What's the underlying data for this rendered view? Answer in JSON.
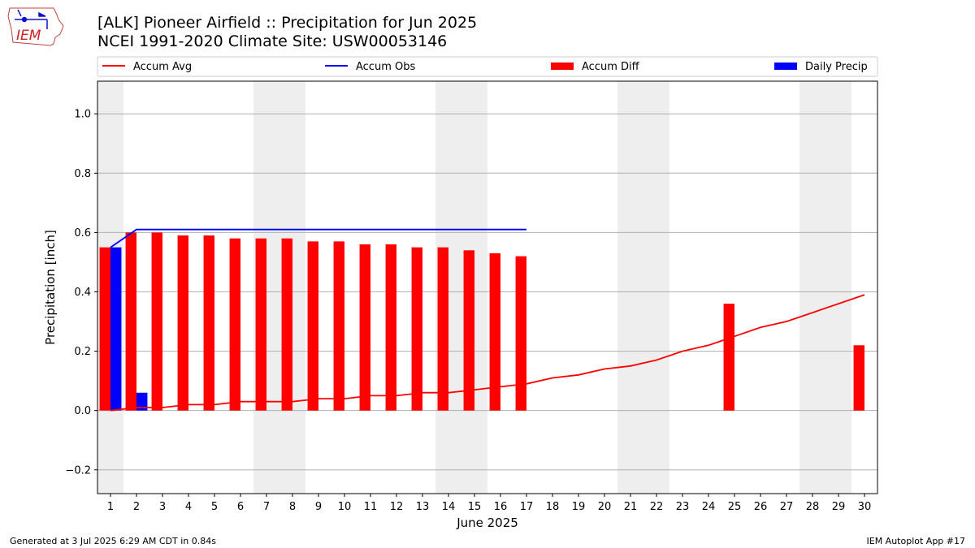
{
  "header": {
    "title_line1": "[ALK] Pioneer Airfield :: Precipitation for Jun 2025",
    "title_line2": "NCEI 1991-2020 Climate Site: USW00053146"
  },
  "logo": {
    "text": "IEM",
    "icon": "iem-iowa-logo"
  },
  "footer": {
    "left": "Generated at 3 Jul 2025 6:29 AM CDT in 0.84s",
    "right": "IEM Autoplot App #17"
  },
  "colors": {
    "red": "#ff0000",
    "blue": "#0000ff",
    "weekend_shade": "#eeeeee",
    "grid": "#b0b0b0"
  },
  "chart_data": {
    "type": "bar",
    "xlabel": "June 2025",
    "ylabel": "Precipitation [inch]",
    "ylim": [
      -0.28,
      1.11
    ],
    "yticks": [
      -0.2,
      0.0,
      0.2,
      0.4,
      0.6,
      0.8,
      1.0
    ],
    "ytick_labels": [
      "−0.2",
      "0.0",
      "0.2",
      "0.4",
      "0.6",
      "0.8",
      "1.0"
    ],
    "grid": "horizontal",
    "legend_position": "top",
    "days": [
      1,
      2,
      3,
      4,
      5,
      6,
      7,
      8,
      9,
      10,
      11,
      12,
      13,
      14,
      15,
      16,
      17,
      18,
      19,
      20,
      21,
      22,
      23,
      24,
      25,
      26,
      27,
      28,
      29,
      30
    ],
    "weekend_shaded_days": [
      1,
      7,
      8,
      14,
      15,
      21,
      22,
      28,
      29
    ],
    "legend": [
      {
        "label": "Accum Avg",
        "kind": "line",
        "color": "#ff0000"
      },
      {
        "label": "Accum Obs",
        "kind": "line",
        "color": "#0000ff"
      },
      {
        "label": "Accum Diff",
        "kind": "bar",
        "color": "#ff0000"
      },
      {
        "label": "Daily Precip",
        "kind": "bar",
        "color": "#0000ff"
      }
    ],
    "series": [
      {
        "name": "Accum Avg",
        "type": "line",
        "color": "#ff0000",
        "values": [
          0.0,
          0.01,
          0.01,
          0.02,
          0.02,
          0.03,
          0.03,
          0.03,
          0.04,
          0.04,
          0.05,
          0.05,
          0.06,
          0.06,
          0.07,
          0.08,
          0.09,
          0.11,
          0.12,
          0.14,
          0.15,
          0.17,
          0.2,
          0.22,
          0.25,
          0.28,
          0.3,
          0.33,
          0.36,
          0.39
        ]
      },
      {
        "name": "Accum Obs",
        "type": "line",
        "color": "#0000ff",
        "values": [
          0.55,
          0.61,
          0.61,
          0.61,
          0.61,
          0.61,
          0.61,
          0.61,
          0.61,
          0.61,
          0.61,
          0.61,
          0.61,
          0.61,
          0.61,
          0.61,
          0.61
        ]
      },
      {
        "name": "Accum Diff",
        "type": "bar",
        "color": "#ff0000",
        "values": [
          0.55,
          0.6,
          0.6,
          0.59,
          0.59,
          0.58,
          0.58,
          0.58,
          0.57,
          0.57,
          0.56,
          0.56,
          0.55,
          0.55,
          0.54,
          0.53,
          0.52,
          null,
          null,
          null,
          null,
          null,
          null,
          null,
          0.36,
          null,
          null,
          null,
          null,
          0.22
        ]
      },
      {
        "name": "Daily Precip",
        "type": "bar",
        "color": "#0000ff",
        "values": [
          0.55,
          0.06,
          0,
          0,
          0,
          0,
          0,
          0,
          0,
          0,
          0,
          0,
          0,
          0,
          0,
          0,
          0
        ]
      }
    ]
  }
}
